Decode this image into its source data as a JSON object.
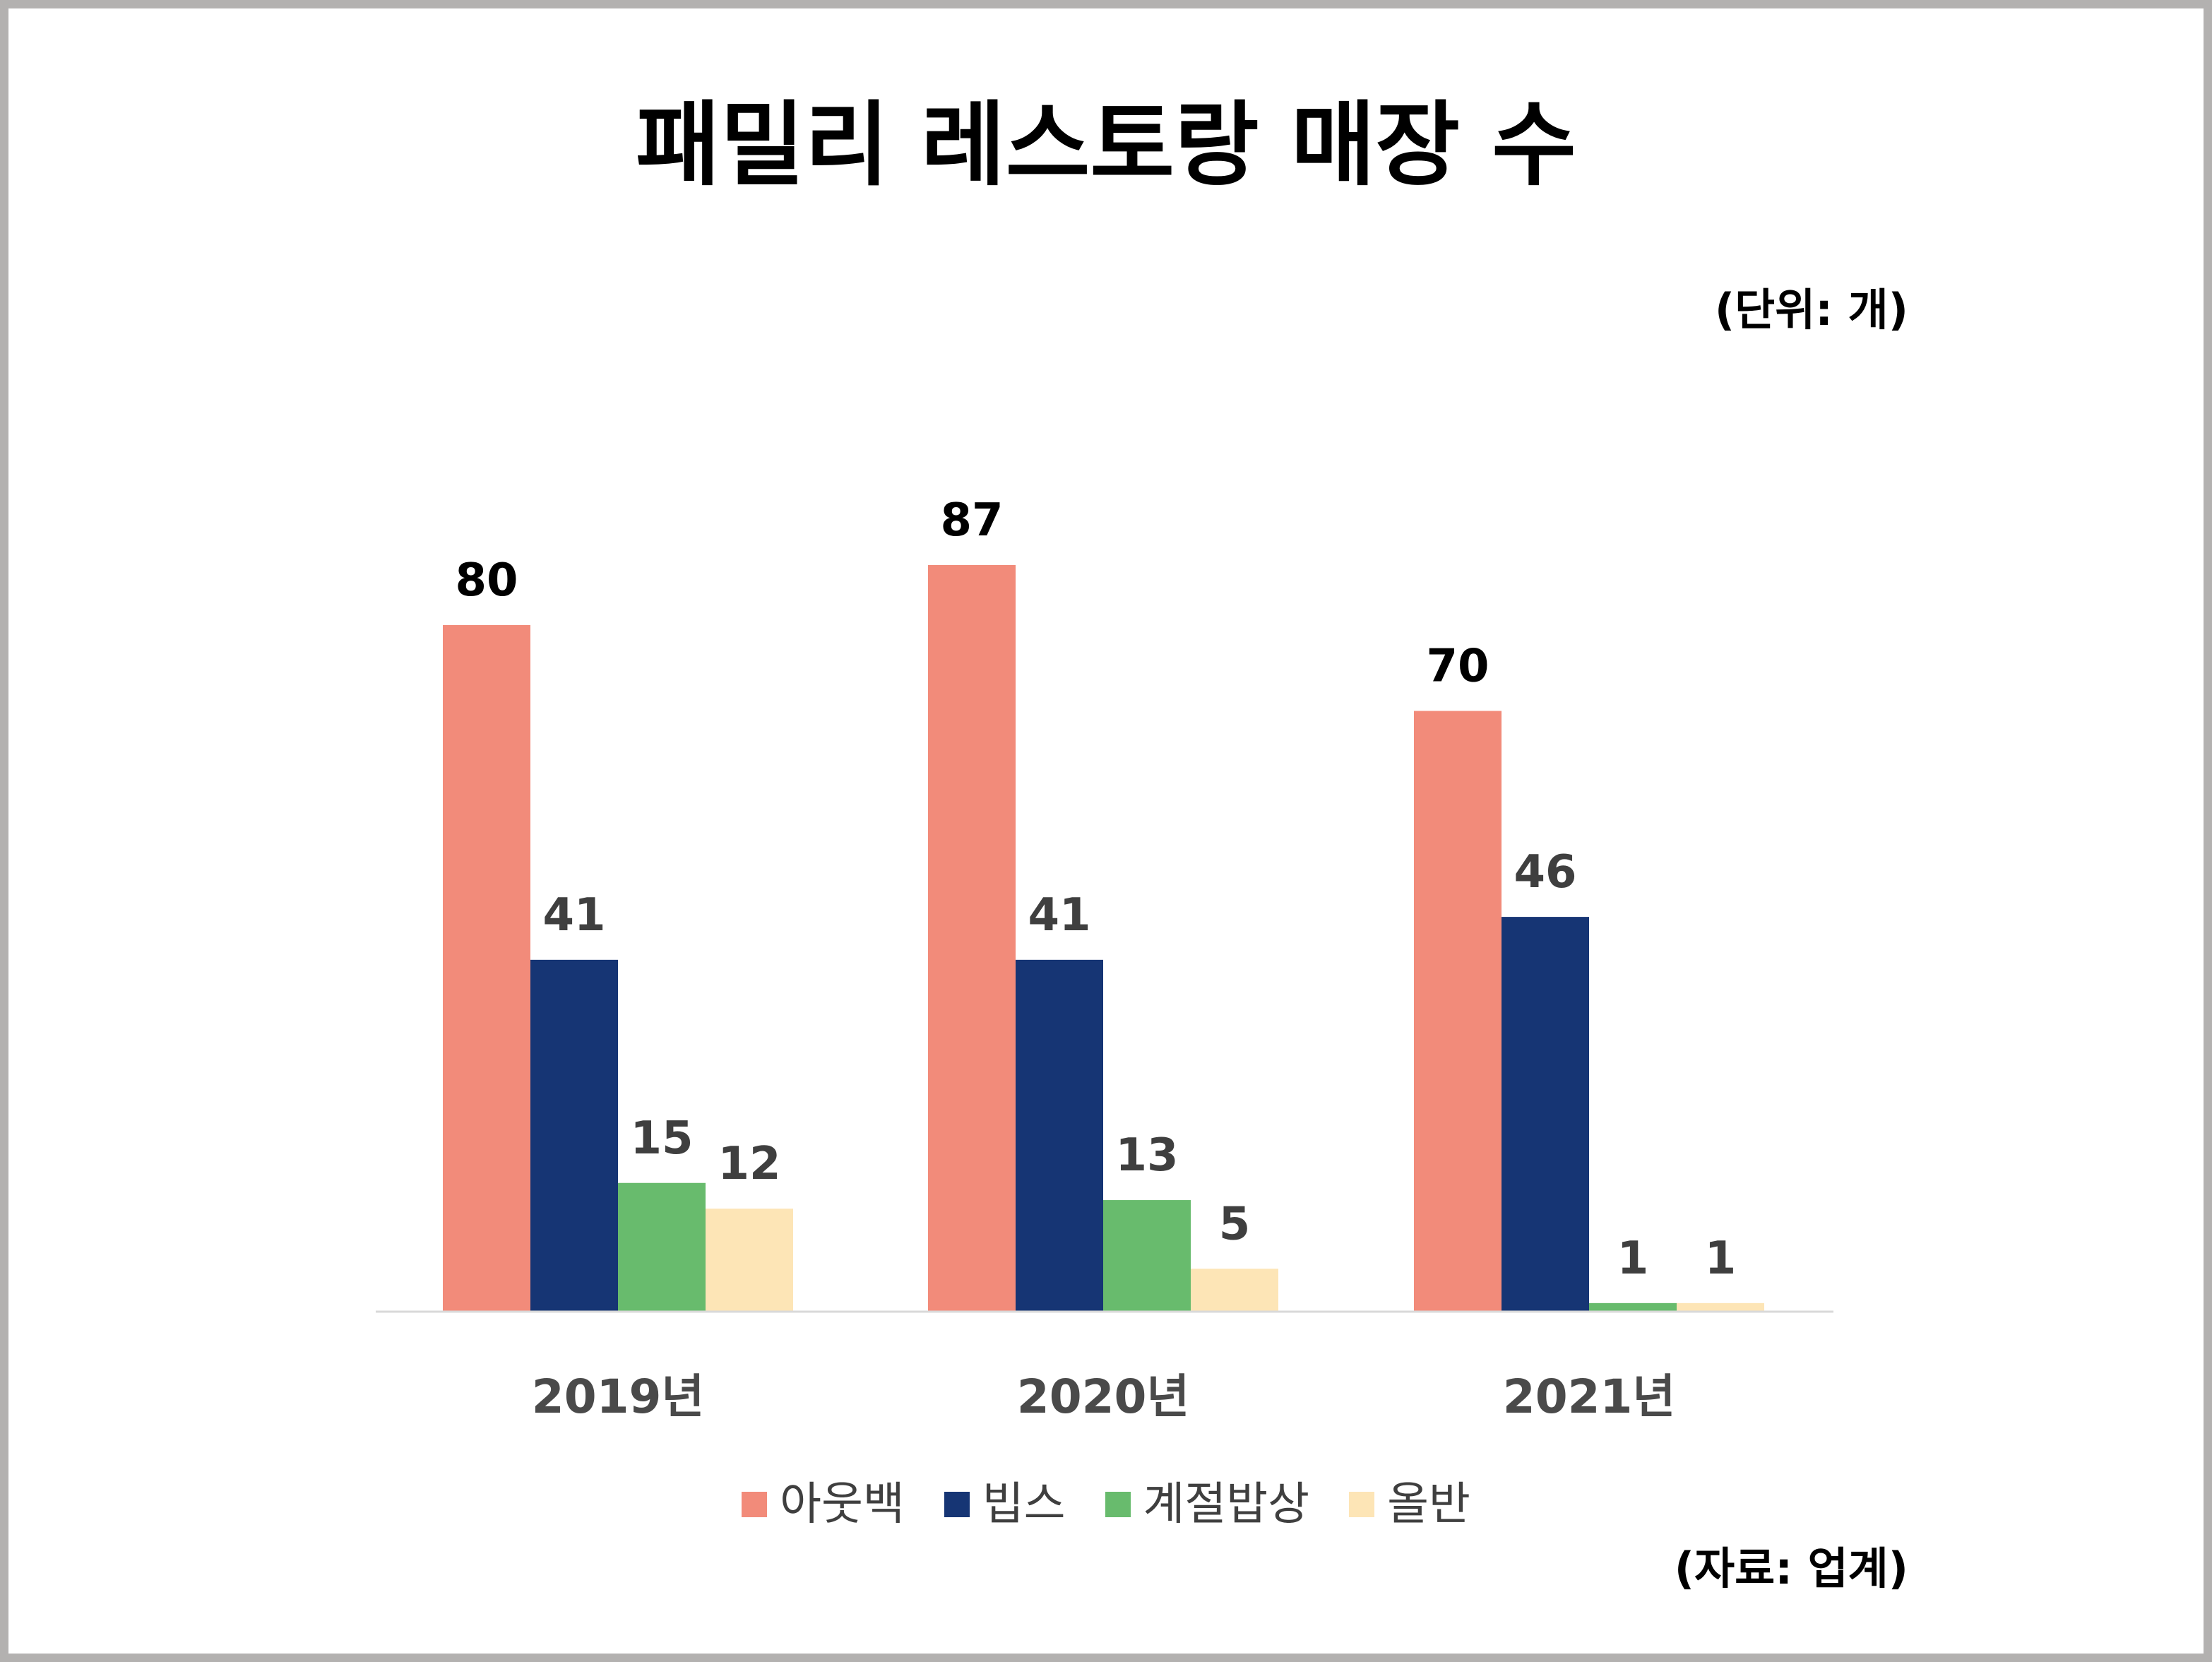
{
  "chart_data": {
    "type": "bar",
    "title": "패밀리 레스토랑 매장 수",
    "unit_note": "(단위: 개)",
    "source_note": "(자료: 업계)",
    "categories": [
      "2019년",
      "2020년",
      "2021년"
    ],
    "series": [
      {
        "name": "아웃백",
        "values": [
          80,
          87,
          70
        ],
        "color": "#f28b7a"
      },
      {
        "name": "빕스",
        "values": [
          41,
          41,
          46
        ],
        "color": "#163574"
      },
      {
        "name": "계절밥상",
        "values": [
          15,
          13,
          1
        ],
        "color": "#68bb6d"
      },
      {
        "name": "올반",
        "values": [
          12,
          5,
          1
        ],
        "color": "#fde5b6"
      }
    ],
    "ylim": [
      0,
      100
    ],
    "grid": false,
    "legend_position": "bottom",
    "data_label_colors": [
      "#000000",
      "#3f3f3f",
      "#3f3f3f",
      "#3f3f3f"
    ]
  }
}
